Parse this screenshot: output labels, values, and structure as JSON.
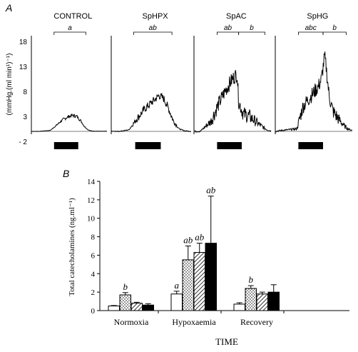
{
  "panelA": {
    "label": "A",
    "ylabel": "(mmHg.(ml min¹)⁻¹)",
    "ytick_labels": [
      "18",
      "13",
      "8",
      "3",
      "- 2"
    ],
    "yticks": [
      18,
      13,
      8,
      3,
      -2
    ],
    "ylim": [
      -2,
      18
    ],
    "traces": [
      {
        "name": "CONTROL",
        "brackets": [
          {
            "label": "a",
            "from": 0.3,
            "to": 0.72
          }
        ],
        "profile": [
          [
            0,
            0
          ],
          [
            0.1,
            0
          ],
          [
            0.25,
            0.2
          ],
          [
            0.33,
            1.2
          ],
          [
            0.42,
            2.4
          ],
          [
            0.5,
            3.0
          ],
          [
            0.55,
            3.2
          ],
          [
            0.6,
            3.0
          ],
          [
            0.65,
            2.2
          ],
          [
            0.7,
            1.0
          ],
          [
            0.75,
            0.3
          ],
          [
            0.8,
            0.05
          ],
          [
            1,
            0
          ]
        ],
        "noise": 0.35
      },
      {
        "name": "SpHPX",
        "brackets": [
          {
            "label": "ab",
            "from": 0.28,
            "to": 0.76
          }
        ],
        "profile": [
          [
            0,
            0
          ],
          [
            0.1,
            0
          ],
          [
            0.22,
            0.3
          ],
          [
            0.32,
            2.5
          ],
          [
            0.42,
            4.5
          ],
          [
            0.52,
            6.0
          ],
          [
            0.6,
            7.2
          ],
          [
            0.66,
            6.5
          ],
          [
            0.72,
            4.5
          ],
          [
            0.78,
            2.0
          ],
          [
            0.85,
            0.5
          ],
          [
            0.92,
            0.1
          ],
          [
            1,
            0
          ]
        ],
        "noise": 0.8
      },
      {
        "name": "SpAC",
        "brackets": [
          {
            "label": "ab",
            "from": 0.3,
            "to": 0.58
          },
          {
            "label": "b",
            "from": 0.58,
            "to": 0.92
          }
        ],
        "profile": [
          [
            0,
            0
          ],
          [
            0.08,
            0
          ],
          [
            0.22,
            2.0
          ],
          [
            0.32,
            5.5
          ],
          [
            0.42,
            8.5
          ],
          [
            0.5,
            10.5
          ],
          [
            0.56,
            11.5
          ],
          [
            0.58,
            6.0
          ],
          [
            0.64,
            3.5
          ],
          [
            0.72,
            3.0
          ],
          [
            0.8,
            2.0
          ],
          [
            0.88,
            1.0
          ],
          [
            0.95,
            0.3
          ],
          [
            1,
            0.1
          ]
        ],
        "noise": 1.5
      },
      {
        "name": "SpHG",
        "brackets": [
          {
            "label": "abc",
            "from": 0.3,
            "to": 0.62
          },
          {
            "label": "b",
            "from": 0.62,
            "to": 0.92
          }
        ],
        "profile": [
          [
            0,
            0
          ],
          [
            0.08,
            0.2
          ],
          [
            0.28,
            0.5
          ],
          [
            0.36,
            5.0
          ],
          [
            0.46,
            7.0
          ],
          [
            0.56,
            9.0
          ],
          [
            0.6,
            10.5
          ],
          [
            0.64,
            15.0
          ],
          [
            0.66,
            13.0
          ],
          [
            0.7,
            7.0
          ],
          [
            0.75,
            4.0
          ],
          [
            0.82,
            2.5
          ],
          [
            0.9,
            1.0
          ],
          [
            0.96,
            0.4
          ],
          [
            1,
            0.2
          ]
        ],
        "noise": 1.5
      }
    ],
    "stimulus_bar": {
      "from": 0.3,
      "to": 0.62
    }
  },
  "panelB": {
    "label": "B",
    "chart_data": {
      "type": "bar",
      "xlabel": "TIME",
      "ylabel": "Total catecholamines (ng.ml⁻¹)",
      "ylim": [
        0,
        14
      ],
      "yticks": [
        0,
        2,
        4,
        6,
        8,
        10,
        12,
        14
      ],
      "categories": [
        "Normoxia",
        "Hypoxaemia",
        "Recovery"
      ],
      "series": [
        {
          "fill": "white",
          "values": [
            0.5,
            1.8,
            0.7
          ],
          "errors": [
            0.05,
            0.3,
            0.15
          ],
          "labels": [
            "",
            "a",
            ""
          ]
        },
        {
          "fill": "dots",
          "values": [
            1.7,
            5.5,
            2.4
          ],
          "errors": [
            0.25,
            1.5,
            0.3
          ],
          "labels": [
            "b",
            "ab",
            "b"
          ]
        },
        {
          "fill": "hatch",
          "values": [
            0.8,
            6.3,
            1.8
          ],
          "errors": [
            0.1,
            1.0,
            0.2
          ],
          "labels": [
            "",
            "ab",
            ""
          ]
        },
        {
          "fill": "black",
          "values": [
            0.6,
            7.3,
            2.0
          ],
          "errors": [
            0.15,
            5.1,
            0.8
          ],
          "labels": [
            "",
            "ab",
            ""
          ]
        }
      ]
    }
  }
}
